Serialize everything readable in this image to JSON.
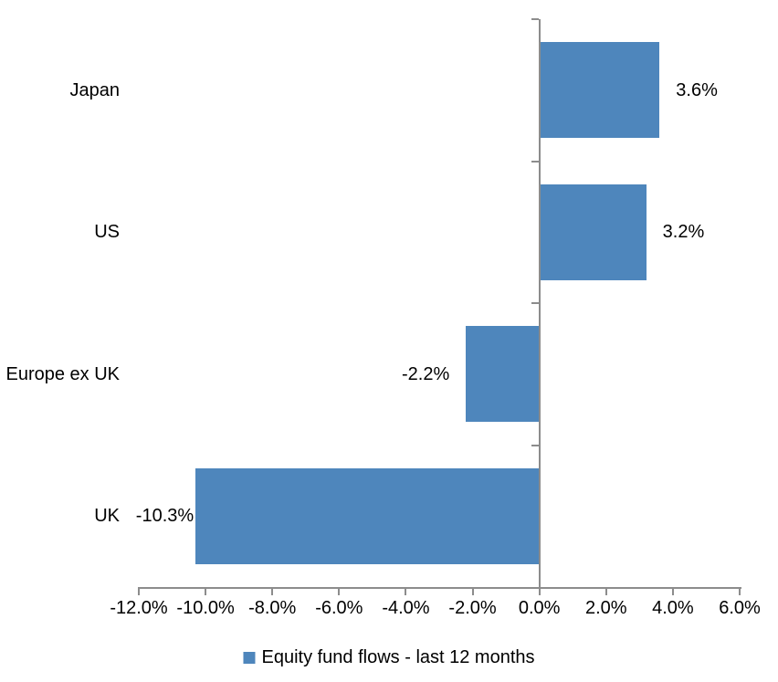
{
  "chart_data": {
    "type": "bar",
    "orientation": "horizontal",
    "title": "",
    "xlabel": "",
    "ylabel": "",
    "categories": [
      "Japan",
      "US",
      "Europe ex UK",
      "UK"
    ],
    "series": [
      {
        "name": "Equity fund flows - last 12 months",
        "values": [
          3.6,
          3.2,
          -2.2,
          -10.3
        ],
        "value_labels": [
          "3.6%",
          "3.2%",
          "-2.2%",
          "-10.3%"
        ]
      }
    ],
    "xlim": [
      -12,
      6
    ],
    "x_tick_step": 2,
    "x_tick_labels": [
      "-12.0%",
      "-10.0%",
      "-8.0%",
      "-6.0%",
      "-4.0%",
      "-2.0%",
      "0.0%",
      "2.0%",
      "4.0%",
      "6.0%"
    ],
    "grid": false,
    "legend_position": "bottom",
    "colors": {
      "bar": "#4E86BC",
      "axis": "#8C8C8C",
      "text": "#000000",
      "background": "#FFFFFF"
    }
  },
  "legend": {
    "label": "Equity fund flows - last 12 months",
    "swatch_color": "#4E86BC"
  }
}
